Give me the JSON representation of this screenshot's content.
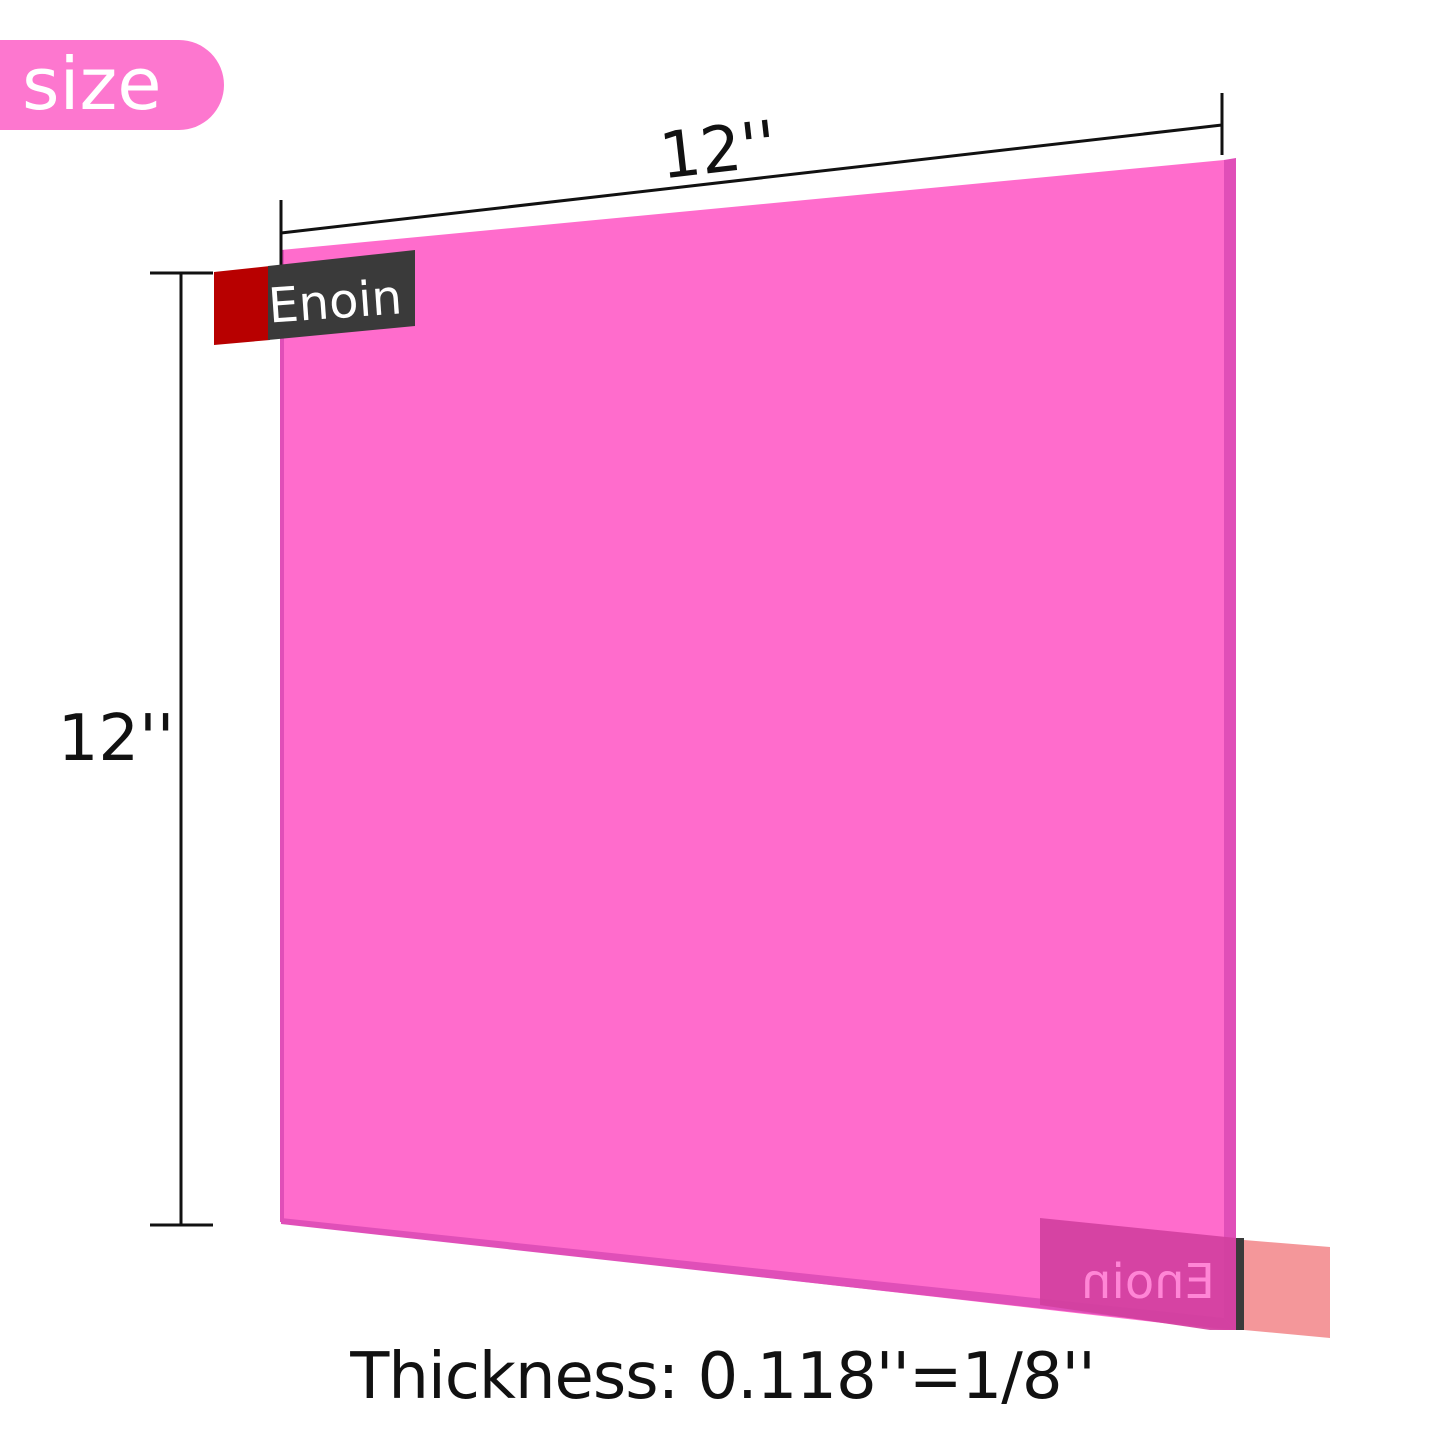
{
  "badge": {
    "label": "size",
    "color": "#fd77cf"
  },
  "dimensions": {
    "width": "12''",
    "height": "12''"
  },
  "brand": {
    "label": "Enoin",
    "tab_color": "#b80000",
    "label_bg": "#3a3a3a",
    "back_tab_color": "#f4979a"
  },
  "sheet": {
    "color": "#ff6ccc",
    "edge_color": "#e04fb8"
  },
  "caption": "Thickness: 0.118''=1/8''"
}
